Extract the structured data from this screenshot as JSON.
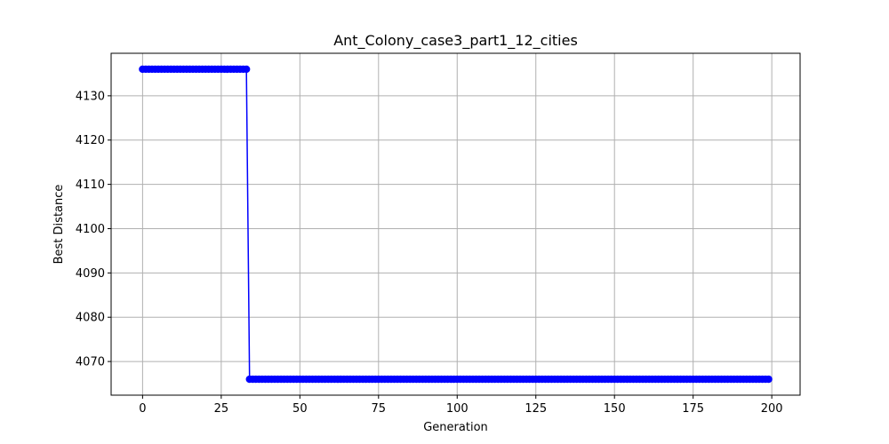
{
  "chart_data": {
    "type": "line",
    "title": "Ant_Colony_case3_part1_12_cities",
    "xlabel": "Generation",
    "ylabel": "Best Distance",
    "xlim": [
      -10,
      209
    ],
    "ylim": [
      4062.4,
      4139.6
    ],
    "xticks": [
      0,
      25,
      50,
      75,
      100,
      125,
      150,
      175,
      200
    ],
    "yticks": [
      4070,
      4080,
      4090,
      4100,
      4110,
      4120,
      4130
    ],
    "grid": true,
    "series": [
      {
        "color": "#0000ff",
        "marker": "circle",
        "segments": [
          {
            "x_start": 0,
            "x_end": 33,
            "y": 4136
          },
          {
            "x_start": 34,
            "x_end": 199,
            "y": 4066
          }
        ]
      }
    ]
  }
}
